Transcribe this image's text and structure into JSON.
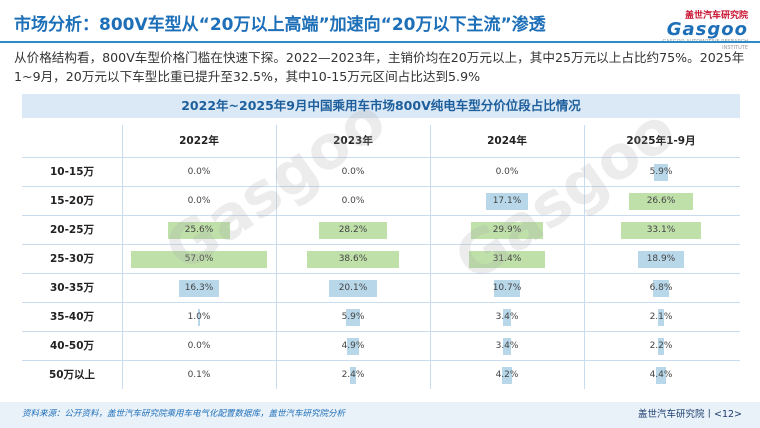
{
  "header": {
    "title": "市场分析：800V车型从“20万以上高端”加速向“20万以下主流”渗透",
    "logo_top": "盖世汽车研究院",
    "logo_main": "Gasgoo",
    "logo_sub": "GASGOO AUTOMOTIVE RESEARCH INSTITUTE"
  },
  "intro": "从价格结构看，800V车型价格门槛在快速下探。2022—2023年，主销价均在20万元以上，其中25万元以上占比约75%。2025年1~9月，20万元以下车型比重已提升至32.5%，其中10-15万元区间占比达到5.9%",
  "table": {
    "title": "2022年~2025年9月中国乘用车市场800V纯电车型分价位段占比情况",
    "columns": [
      "2022年",
      "2023年",
      "2024年",
      "2025年1-9月"
    ],
    "rows": [
      {
        "label": "10-15万",
        "values": [
          "0.0%",
          "0.0%",
          "0.0%",
          "5.9%"
        ],
        "nums": [
          0.0,
          0.0,
          0.0,
          5.9
        ],
        "colors": [
          "green",
          "green",
          "green",
          "blue"
        ]
      },
      {
        "label": "15-20万",
        "values": [
          "0.0%",
          "0.0%",
          "17.1%",
          "26.6%"
        ],
        "nums": [
          0.0,
          0.0,
          17.1,
          26.6
        ],
        "colors": [
          "green",
          "green",
          "blue",
          "green"
        ]
      },
      {
        "label": "20-25万",
        "values": [
          "25.6%",
          "28.2%",
          "29.9%",
          "33.1%"
        ],
        "nums": [
          25.6,
          28.2,
          29.9,
          33.1
        ],
        "colors": [
          "green",
          "green",
          "green",
          "green"
        ]
      },
      {
        "label": "25-30万",
        "values": [
          "57.0%",
          "38.6%",
          "31.4%",
          "18.9%"
        ],
        "nums": [
          57.0,
          38.6,
          31.4,
          18.9
        ],
        "colors": [
          "green",
          "green",
          "green",
          "blue"
        ]
      },
      {
        "label": "30-35万",
        "values": [
          "16.3%",
          "20.1%",
          "10.7%",
          "6.8%"
        ],
        "nums": [
          16.3,
          20.1,
          10.7,
          6.8
        ],
        "colors": [
          "blue",
          "blue",
          "blue",
          "blue"
        ]
      },
      {
        "label": "35-40万",
        "values": [
          "1.0%",
          "5.9%",
          "3.4%",
          "2.1%"
        ],
        "nums": [
          1.0,
          5.9,
          3.4,
          2.1
        ],
        "colors": [
          "blue",
          "blue",
          "blue",
          "blue"
        ]
      },
      {
        "label": "40-50万",
        "values": [
          "0.0%",
          "4.9%",
          "3.4%",
          "2.2%"
        ],
        "nums": [
          0.0,
          4.9,
          3.4,
          2.2
        ],
        "colors": [
          "blue",
          "blue",
          "blue",
          "blue"
        ]
      },
      {
        "label": "50万以上",
        "values": [
          "0.1%",
          "2.4%",
          "4.2%",
          "4.4%"
        ],
        "nums": [
          0.1,
          2.4,
          4.2,
          4.4
        ],
        "colors": [
          "blue",
          "blue",
          "blue",
          "blue"
        ]
      }
    ]
  },
  "footer": {
    "source": "资料来源：公开资料，盖世汽车研究院乘用车电气化配置数据库，盖世汽车研究院分析",
    "page": "盖世汽车研究院丨<12>"
  },
  "colors": {
    "accent": "#1d6fb8",
    "green_bar": "#bfe0a9",
    "blue_bar": "#b8d8ea"
  }
}
